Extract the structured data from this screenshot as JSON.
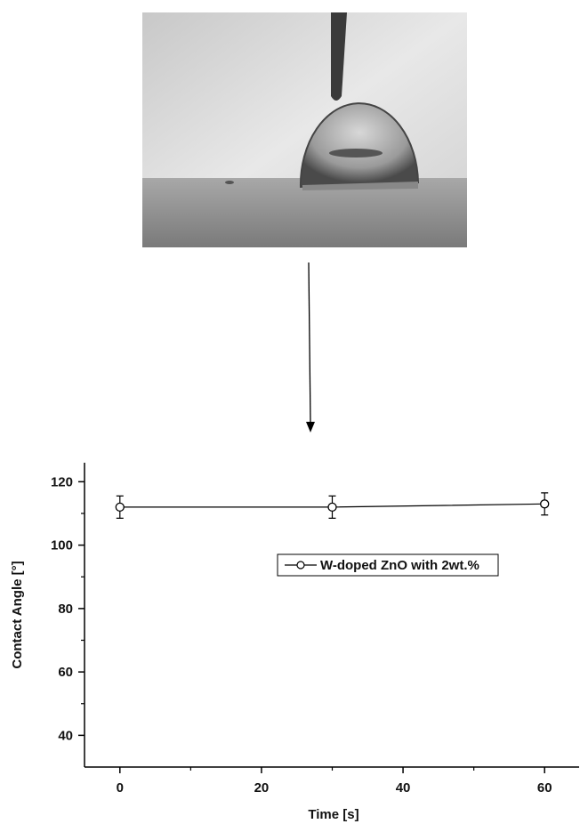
{
  "chart_data": {
    "type": "line",
    "x_label": "Time  [s]",
    "y_label": "Contact Angle [°]",
    "x": [
      0,
      30,
      60
    ],
    "series": [
      {
        "name": "W-doped ZnO with 2wt.%",
        "color": "#000000",
        "values": [
          112,
          112,
          113
        ],
        "errors": [
          3.5,
          3.5,
          3.5
        ]
      }
    ],
    "xlim": [
      -5,
      65
    ],
    "ylim": [
      30,
      126
    ],
    "xticks": [
      0,
      20,
      40,
      60
    ],
    "yticks": [
      40,
      60,
      80,
      100,
      120
    ],
    "xminorticks": [
      10,
      30,
      50
    ],
    "yminorticks": [
      50,
      70,
      90,
      110
    ],
    "legend": "upper-right"
  }
}
